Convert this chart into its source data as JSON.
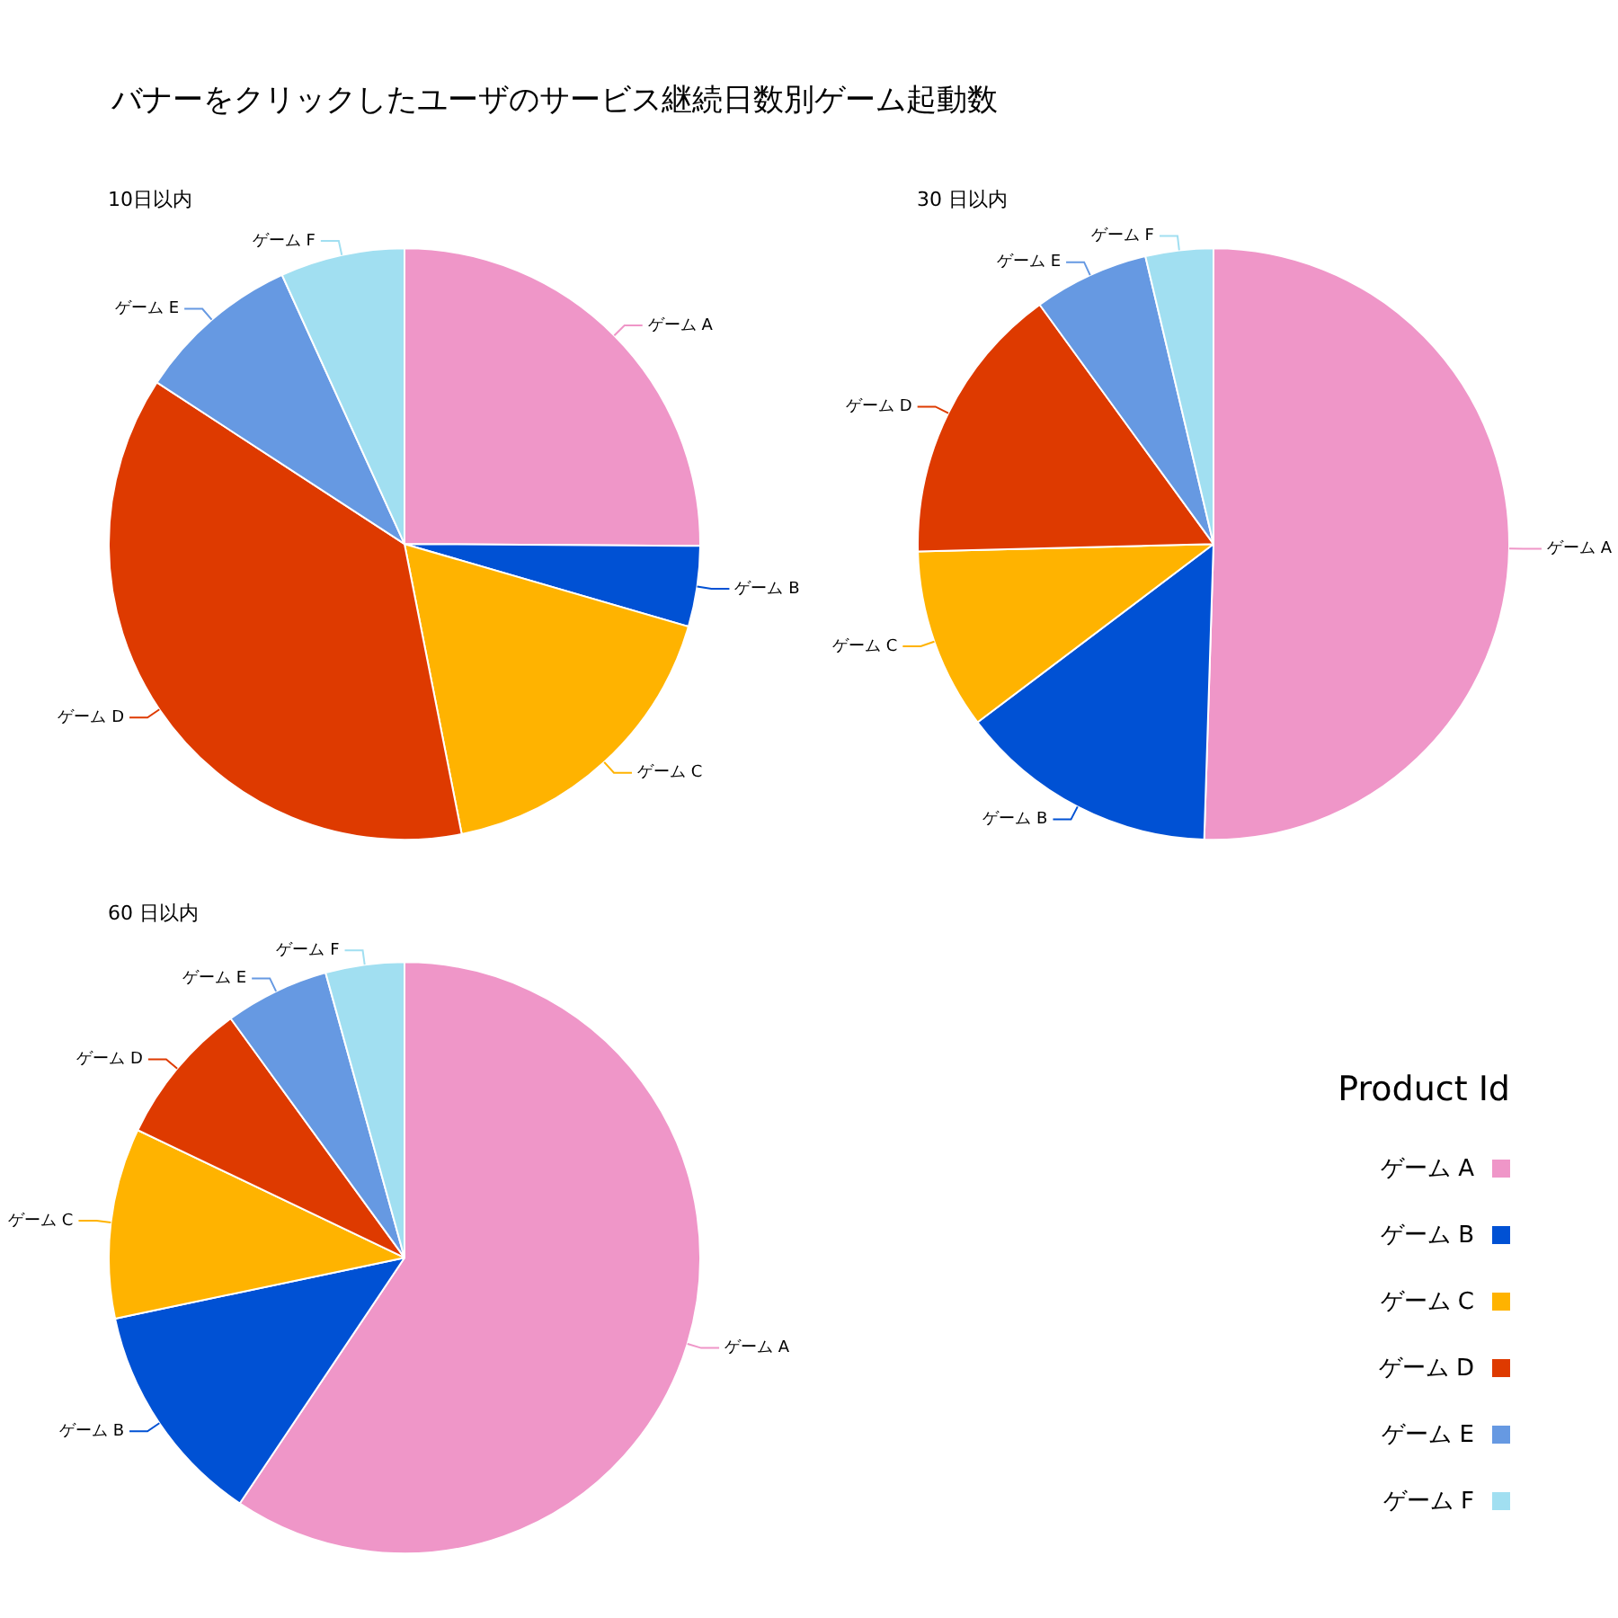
{
  "chart_data": [
    {
      "type": "pie",
      "title": "バナーをクリックしたユーザのサービス継続日数別ゲーム起動数",
      "subtitle": "10日以内",
      "categories": [
        "ゲーム A",
        "ゲーム B",
        "ゲーム C",
        "ゲーム D",
        "ゲーム E",
        "ゲーム F"
      ],
      "values": [
        25.1,
        4.4,
        17.4,
        37.3,
        9.0,
        6.8
      ],
      "colors": [
        "#ef96c8",
        "#0051d4",
        "#ffb300",
        "#de3a00",
        "#6699e2",
        "#a1dff1"
      ]
    },
    {
      "type": "pie",
      "title": "30 日以内",
      "categories": [
        "ゲーム A",
        "ゲーム B",
        "ゲーム C",
        "ゲーム D",
        "ゲーム E",
        "ゲーム F"
      ],
      "values": [
        50.5,
        14.2,
        9.9,
        15.4,
        6.3,
        3.7
      ],
      "colors": [
        "#ef96c8",
        "#0051d4",
        "#ffb300",
        "#de3a00",
        "#6699e2",
        "#a1dff1"
      ]
    },
    {
      "type": "pie",
      "title": "60 日以内",
      "categories": [
        "ゲーム A",
        "ゲーム B",
        "ゲーム C",
        "ゲーム D",
        "ゲーム E",
        "ゲーム F"
      ],
      "values": [
        59.4,
        12.3,
        10.4,
        7.9,
        5.7,
        4.3
      ],
      "colors": [
        "#ef96c8",
        "#0051d4",
        "#ffb300",
        "#de3a00",
        "#6699e2",
        "#a1dff1"
      ],
      "legend": "right",
      "legend_title": "Product Id"
    }
  ]
}
